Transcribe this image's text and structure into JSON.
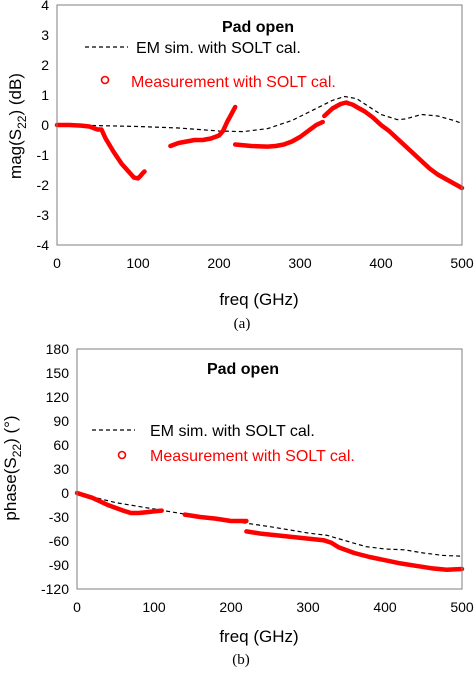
{
  "chart_data": [
    {
      "type": "line",
      "panel_caption": "(a)",
      "title": "Pad open",
      "xlabel": "freq (GHz)",
      "ylabel": {
        "prefix": "mag(S",
        "sub": "22",
        "suffix": ") (dB)"
      },
      "xlim": [
        0,
        500
      ],
      "ylim": [
        -4,
        4
      ],
      "x_ticks": [
        0,
        100,
        200,
        300,
        400,
        500
      ],
      "y_ticks": [
        -4,
        -3,
        -2,
        -1,
        0,
        1,
        2,
        3,
        4
      ],
      "grid": false,
      "legend": [
        {
          "label": "EM sim. with SOLT cal.",
          "style": "dashed",
          "color": "#000000"
        },
        {
          "label": "Measurement with SOLT cal.",
          "style": "markers",
          "color": "#ff0000"
        }
      ],
      "series": [
        {
          "name": "EM sim. with SOLT cal.",
          "style": "dashed",
          "color": "#000000",
          "x": [
            0,
            50,
            100,
            150,
            200,
            230,
            260,
            290,
            320,
            340,
            355,
            370,
            380,
            400,
            420,
            430,
            450,
            470,
            490,
            500
          ],
          "y": [
            0,
            -0.02,
            -0.05,
            -0.1,
            -0.2,
            -0.22,
            -0.12,
            0.15,
            0.55,
            0.82,
            0.95,
            0.88,
            0.7,
            0.35,
            0.18,
            0.2,
            0.35,
            0.3,
            0.15,
            0.05
          ]
        },
        {
          "name": "Measurement with SOLT cal.",
          "style": "markers",
          "color": "#ff0000",
          "segments": [
            {
              "x": [
                0,
                15,
                30,
                40,
                50,
                55,
                60,
                70,
                80,
                90,
                95,
                100,
                103,
                106,
                108
              ],
              "y": [
                0,
                0,
                -0.02,
                -0.05,
                -0.15,
                -0.15,
                -0.45,
                -0.9,
                -1.3,
                -1.6,
                -1.75,
                -1.78,
                -1.7,
                -1.6,
                -1.55
              ]
            },
            {
              "x": [
                140,
                150,
                160,
                170,
                180,
                190,
                200,
                205,
                210,
                215,
                220
              ],
              "y": [
                -0.7,
                -0.6,
                -0.55,
                -0.5,
                -0.5,
                -0.45,
                -0.35,
                -0.2,
                0.1,
                0.35,
                0.6
              ]
            },
            {
              "x": [
                220,
                240,
                260,
                270,
                280,
                290,
                300,
                310,
                320,
                328
              ],
              "y": [
                -0.65,
                -0.7,
                -0.72,
                -0.7,
                -0.65,
                -0.55,
                -0.4,
                -0.2,
                0,
                0.1
              ]
            },
            {
              "x": [
                330,
                340,
                350,
                357,
                360,
                365,
                370,
                380,
                390,
                400,
                410,
                420,
                430,
                440,
                450,
                460,
                470,
                480,
                490,
                500
              ],
              "y": [
                0.3,
                0.55,
                0.7,
                0.75,
                0.72,
                0.68,
                0.6,
                0.45,
                0.25,
                0,
                -0.2,
                -0.45,
                -0.7,
                -0.95,
                -1.2,
                -1.45,
                -1.65,
                -1.8,
                -1.95,
                -2.1
              ]
            }
          ]
        }
      ]
    },
    {
      "type": "line",
      "panel_caption": "(b)",
      "title": "Pad open",
      "xlabel": "freq (GHz)",
      "ylabel": {
        "prefix": "phase(S",
        "sub": "22",
        "suffix": ") (°)"
      },
      "xlim": [
        0,
        500
      ],
      "ylim": [
        -120,
        180
      ],
      "x_ticks": [
        0,
        100,
        200,
        300,
        400,
        500
      ],
      "y_ticks": [
        -120,
        -90,
        -60,
        -30,
        0,
        30,
        60,
        90,
        120,
        150,
        180
      ],
      "grid": false,
      "legend": [
        {
          "label": "EM sim. with SOLT cal.",
          "style": "dashed",
          "color": "#000000"
        },
        {
          "label": "Measurement with SOLT cal.",
          "style": "markers",
          "color": "#ff0000"
        }
      ],
      "series": [
        {
          "name": "EM sim. with SOLT cal.",
          "style": "dashed",
          "color": "#000000",
          "x": [
            0,
            50,
            100,
            150,
            200,
            250,
            300,
            325,
            350,
            375,
            400,
            425,
            450,
            475,
            500
          ],
          "y": [
            0,
            -12,
            -20,
            -28,
            -35,
            -42,
            -50,
            -53,
            -60,
            -67,
            -70,
            -71,
            -75,
            -78,
            -79
          ]
        },
        {
          "name": "Measurement with SOLT cal.",
          "style": "markers",
          "color": "#ff0000",
          "segments": [
            {
              "x": [
                0,
                20,
                40,
                60,
                70,
                80,
                90,
                100,
                110
              ],
              "y": [
                0,
                -6,
                -15,
                -22,
                -25,
                -25,
                -24,
                -23,
                -22
              ]
            },
            {
              "x": [
                140,
                160,
                180,
                200,
                220
              ],
              "y": [
                -27,
                -30,
                -32,
                -35,
                -35
              ]
            },
            {
              "x": [
                220,
                240,
                260,
                280,
                300,
                320,
                330,
                340,
                360,
                380,
                400,
                420,
                440,
                460,
                480,
                500
              ],
              "y": [
                -48,
                -51,
                -53,
                -55,
                -57,
                -59,
                -62,
                -68,
                -75,
                -80,
                -84,
                -88,
                -91,
                -94,
                -96,
                -95
              ]
            }
          ]
        }
      ]
    }
  ]
}
